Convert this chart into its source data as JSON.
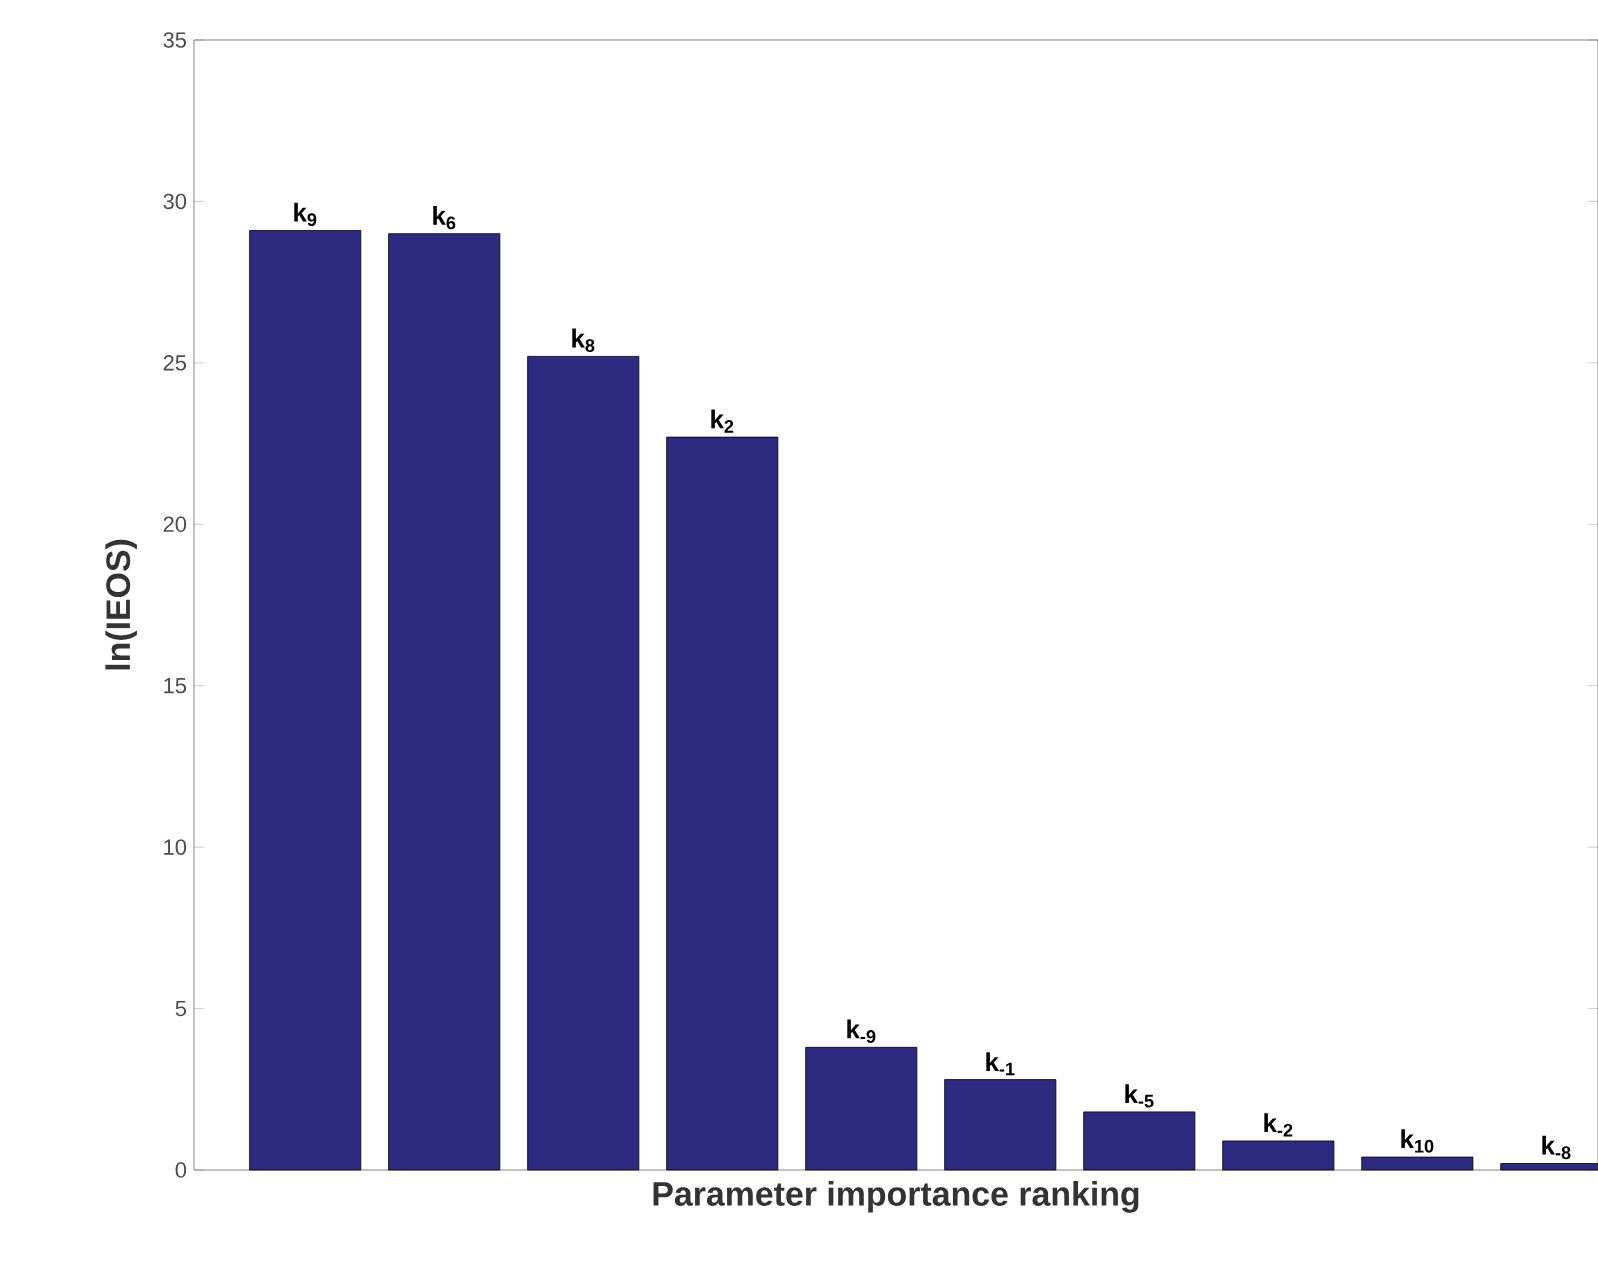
{
  "chart_data": {
    "type": "bar",
    "xlabel": "Parameter importance ranking",
    "ylabel": "ln(IEOS)",
    "categories": [
      "k$_{9}$",
      "k$_{6}$",
      "k$_{8}$",
      "k$_{2}$",
      "k$_{-9}$",
      "k$_{-1}$",
      "k$_{-5}$",
      "k$_{-2}$",
      "k$_{10}$",
      "k$_{-8}$"
    ],
    "values": [
      29.1,
      29.0,
      25.2,
      22.7,
      3.8,
      2.8,
      1.8,
      0.9,
      0.4,
      0.2
    ],
    "color": "#2e2a80",
    "ylim": [
      0,
      35
    ],
    "yticks": [
      0,
      5,
      10,
      15,
      20,
      25,
      30,
      35
    ],
    "grid": false
  }
}
